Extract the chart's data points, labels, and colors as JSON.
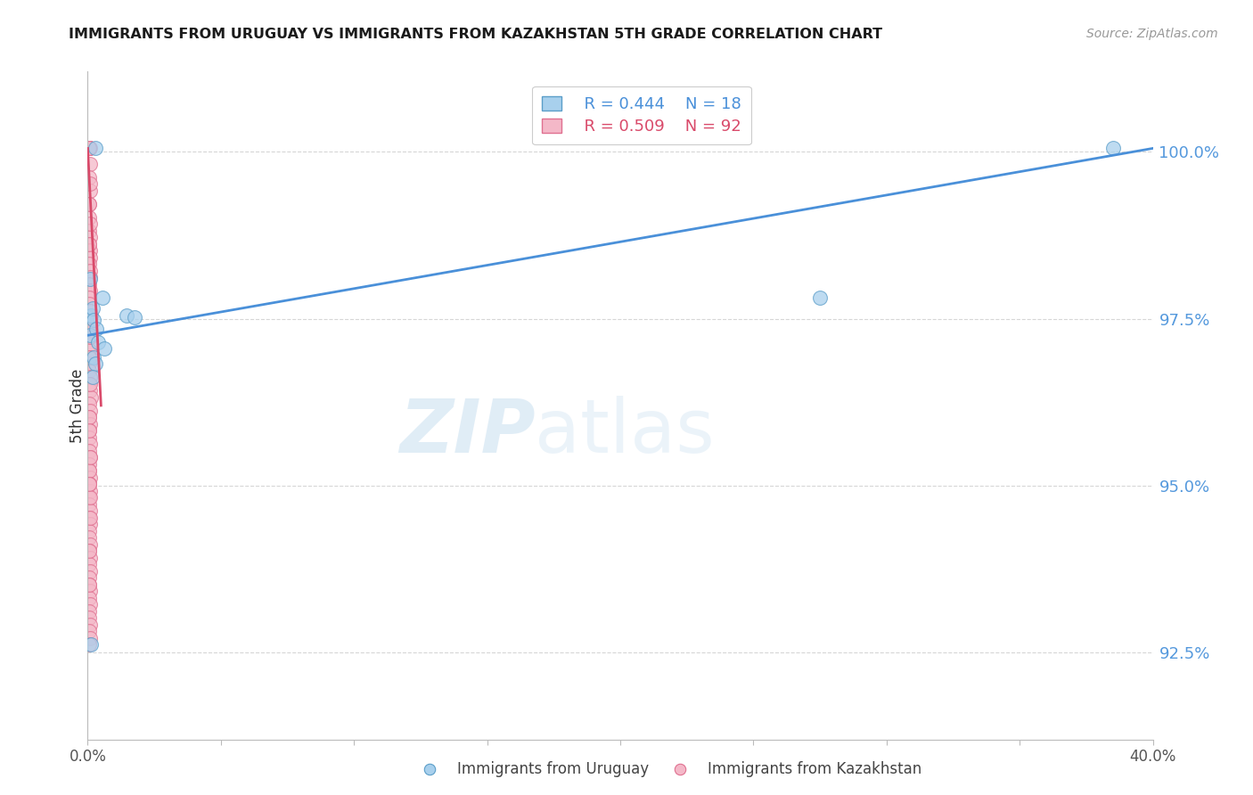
{
  "title": "IMMIGRANTS FROM URUGUAY VS IMMIGRANTS FROM KAZAKHSTAN 5TH GRADE CORRELATION CHART",
  "source": "Source: ZipAtlas.com",
  "ylabel": "5th Grade",
  "yticks": [
    92.5,
    95.0,
    97.5,
    100.0
  ],
  "ytick_labels": [
    "92.5%",
    "95.0%",
    "97.5%",
    "100.0%"
  ],
  "xticks": [
    0.0,
    5.0,
    10.0,
    15.0,
    20.0,
    25.0,
    30.0,
    35.0,
    40.0
  ],
  "xlim": [
    0.0,
    40.0
  ],
  "ylim": [
    91.2,
    101.2
  ],
  "watermark_zip": "ZIP",
  "watermark_atlas": "atlas",
  "legend_blue_r": "R = 0.444",
  "legend_blue_n": "N = 18",
  "legend_pink_r": "R = 0.509",
  "legend_pink_n": "N = 92",
  "blue_color": "#a8d0ed",
  "pink_color": "#f4b8c8",
  "blue_edge_color": "#5b9ec9",
  "pink_edge_color": "#e07090",
  "blue_line_color": "#4a90d9",
  "pink_line_color": "#d94a6a",
  "title_color": "#1a1a1a",
  "source_color": "#999999",
  "ytick_color": "#5599dd",
  "grid_color": "#cccccc",
  "blue_line_x": [
    0.0,
    40.0
  ],
  "blue_line_y": [
    97.25,
    100.05
  ],
  "pink_line_x": [
    0.0,
    0.5
  ],
  "pink_line_y": [
    100.05,
    96.2
  ],
  "blue_scatter_x": [
    0.28,
    1.45,
    0.08,
    0.12,
    0.18,
    0.22,
    0.08,
    1.75,
    0.55,
    0.32,
    0.38,
    0.22,
    0.62,
    0.28,
    0.18,
    38.5,
    27.5,
    0.12
  ],
  "blue_scatter_y": [
    100.05,
    97.55,
    98.1,
    97.55,
    97.65,
    97.48,
    97.25,
    97.52,
    97.82,
    97.35,
    97.15,
    96.92,
    97.05,
    96.82,
    96.62,
    100.05,
    97.82,
    92.62
  ],
  "pink_scatter_x": [
    0.04,
    0.06,
    0.05,
    0.08,
    0.06,
    0.09,
    0.04,
    0.07,
    0.04,
    0.06,
    0.05,
    0.09,
    0.04,
    0.07,
    0.08,
    0.04,
    0.07,
    0.09,
    0.04,
    0.07,
    0.04,
    0.06,
    0.09,
    0.04,
    0.07,
    0.04,
    0.06,
    0.09,
    0.04,
    0.07,
    0.04,
    0.06,
    0.09,
    0.04,
    0.07,
    0.11,
    0.06,
    0.09,
    0.04,
    0.07,
    0.04,
    0.06,
    0.09,
    0.04,
    0.07,
    0.04,
    0.06,
    0.09,
    0.04,
    0.07,
    0.04,
    0.06,
    0.09,
    0.04,
    0.07,
    0.04,
    0.06,
    0.09,
    0.04,
    0.07,
    0.04,
    0.06,
    0.09,
    0.04,
    0.07,
    0.04,
    0.06,
    0.09,
    0.04,
    0.07,
    0.04,
    0.06,
    0.09,
    0.04,
    0.07,
    0.04,
    0.06,
    0.09,
    0.04,
    0.07,
    0.04,
    0.06,
    0.09,
    0.04,
    0.07,
    0.04,
    0.06,
    0.09,
    0.04,
    0.07,
    0.04,
    0.06
  ],
  "pink_scatter_y": [
    100.05,
    100.05,
    100.05,
    100.05,
    100.05,
    99.82,
    99.62,
    99.42,
    99.22,
    99.02,
    98.82,
    98.72,
    98.62,
    98.52,
    98.42,
    98.32,
    98.22,
    98.12,
    98.02,
    97.92,
    97.82,
    97.72,
    97.62,
    97.52,
    97.42,
    97.32,
    97.22,
    97.12,
    97.02,
    96.92,
    96.82,
    96.72,
    96.62,
    96.52,
    96.42,
    96.32,
    96.22,
    96.12,
    96.02,
    95.92,
    95.82,
    95.72,
    95.62,
    95.52,
    95.42,
    95.32,
    95.22,
    95.12,
    95.02,
    94.92,
    94.82,
    94.72,
    94.62,
    94.52,
    94.42,
    94.32,
    94.22,
    94.12,
    94.02,
    93.92,
    95.22,
    95.02,
    94.82,
    93.82,
    93.72,
    93.62,
    93.52,
    93.42,
    93.32,
    93.22,
    93.12,
    93.02,
    92.92,
    92.82,
    92.72,
    92.62,
    100.05,
    99.52,
    99.22,
    98.92,
    98.62,
    97.52,
    97.22,
    96.92,
    96.52,
    96.02,
    95.82,
    95.42,
    95.02,
    94.52,
    94.02,
    93.52
  ]
}
